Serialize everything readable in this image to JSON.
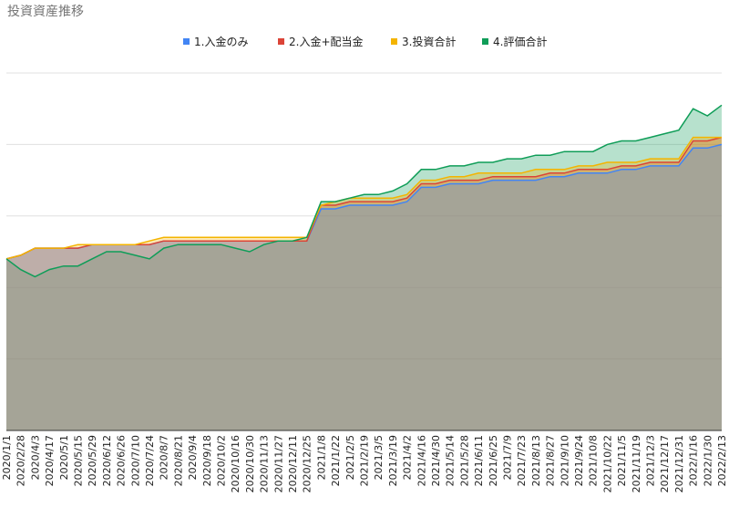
{
  "chart_data": {
    "type": "area",
    "title": "投資資産推移",
    "xlabel": "",
    "ylabel": "",
    "ylim": [
      0,
      100
    ],
    "y_axis_labels_visible": false,
    "grid": "horizontal",
    "legend_position": "top",
    "categories": [
      "2020/1/1",
      "2020/2/28",
      "2020/4/3",
      "2020/4/17",
      "2020/5/1",
      "2020/5/15",
      "2020/5/29",
      "2020/6/12",
      "2020/6/26",
      "2020/7/10",
      "2020/7/24",
      "2020/8/7",
      "2020/8/21",
      "2020/9/4",
      "2020/9/18",
      "2020/10/2",
      "2020/10/16",
      "2020/10/30",
      "2020/11/13",
      "2020/11/27",
      "2020/12/11",
      "2020/12/25",
      "2021/1/8",
      "2021/1/22",
      "2021/2/5",
      "2021/2/19",
      "2021/3/5",
      "2021/3/19",
      "2021/4/2",
      "2021/4/16",
      "2021/4/30",
      "2021/5/14",
      "2021/5/28",
      "2021/6/11",
      "2021/6/25",
      "2021/7/9",
      "2021/7/23",
      "2021/8/13",
      "2021/8/27",
      "2021/9/10",
      "2021/9/24",
      "2021/10/8",
      "2021/10/22",
      "2021/11/5",
      "2021/11/19",
      "2021/12/3",
      "2021/12/17",
      "2021/12/31",
      "2022/1/16",
      "2022/1/30",
      "2022/2/13"
    ],
    "series": [
      {
        "name": "1.入金のみ",
        "color": "#4285f4",
        "values": [
          48,
          49,
          51,
          51,
          51,
          51,
          52,
          52,
          52,
          52,
          52,
          53,
          53,
          53,
          53,
          53,
          53,
          53,
          53,
          53,
          53,
          53,
          62,
          62,
          63,
          63,
          63,
          63,
          64,
          68,
          68,
          69,
          69,
          69,
          70,
          70,
          70,
          70,
          71,
          71,
          72,
          72,
          72,
          73,
          73,
          74,
          74,
          74,
          79,
          79,
          80
        ]
      },
      {
        "name": "2.入金+配当金",
        "color": "#db4437",
        "values": [
          48,
          49,
          51,
          51,
          51,
          51,
          52,
          52,
          52,
          52,
          52,
          53,
          53,
          53,
          53,
          53,
          53,
          53,
          53,
          53,
          53,
          53,
          63,
          63,
          64,
          64,
          64,
          64,
          65,
          69,
          69,
          70,
          70,
          70,
          71,
          71,
          71,
          71,
          72,
          72,
          73,
          73,
          73,
          74,
          74,
          75,
          75,
          75,
          81,
          81,
          82
        ]
      },
      {
        "name": "3.投資合計",
        "color": "#f4b400",
        "values": [
          48,
          49,
          51,
          51,
          51,
          52,
          52,
          52,
          52,
          52,
          53,
          54,
          54,
          54,
          54,
          54,
          54,
          54,
          54,
          54,
          54,
          54,
          63,
          64,
          65,
          65,
          65,
          65,
          66,
          70,
          70,
          71,
          71,
          72,
          72,
          72,
          72,
          73,
          73,
          73,
          74,
          74,
          75,
          75,
          75,
          76,
          76,
          76,
          82,
          82,
          82
        ]
      },
      {
        "name": "4.評価合計",
        "color": "#0f9d58",
        "values": [
          48,
          45,
          43,
          45,
          46,
          46,
          48,
          50,
          50,
          49,
          48,
          51,
          52,
          52,
          52,
          52,
          51,
          50,
          52,
          53,
          53,
          54,
          64,
          64,
          65,
          66,
          66,
          67,
          69,
          73,
          73,
          74,
          74,
          75,
          75,
          76,
          76,
          77,
          77,
          78,
          78,
          78,
          80,
          81,
          81,
          82,
          83,
          84,
          90,
          88,
          91
        ]
      }
    ]
  }
}
